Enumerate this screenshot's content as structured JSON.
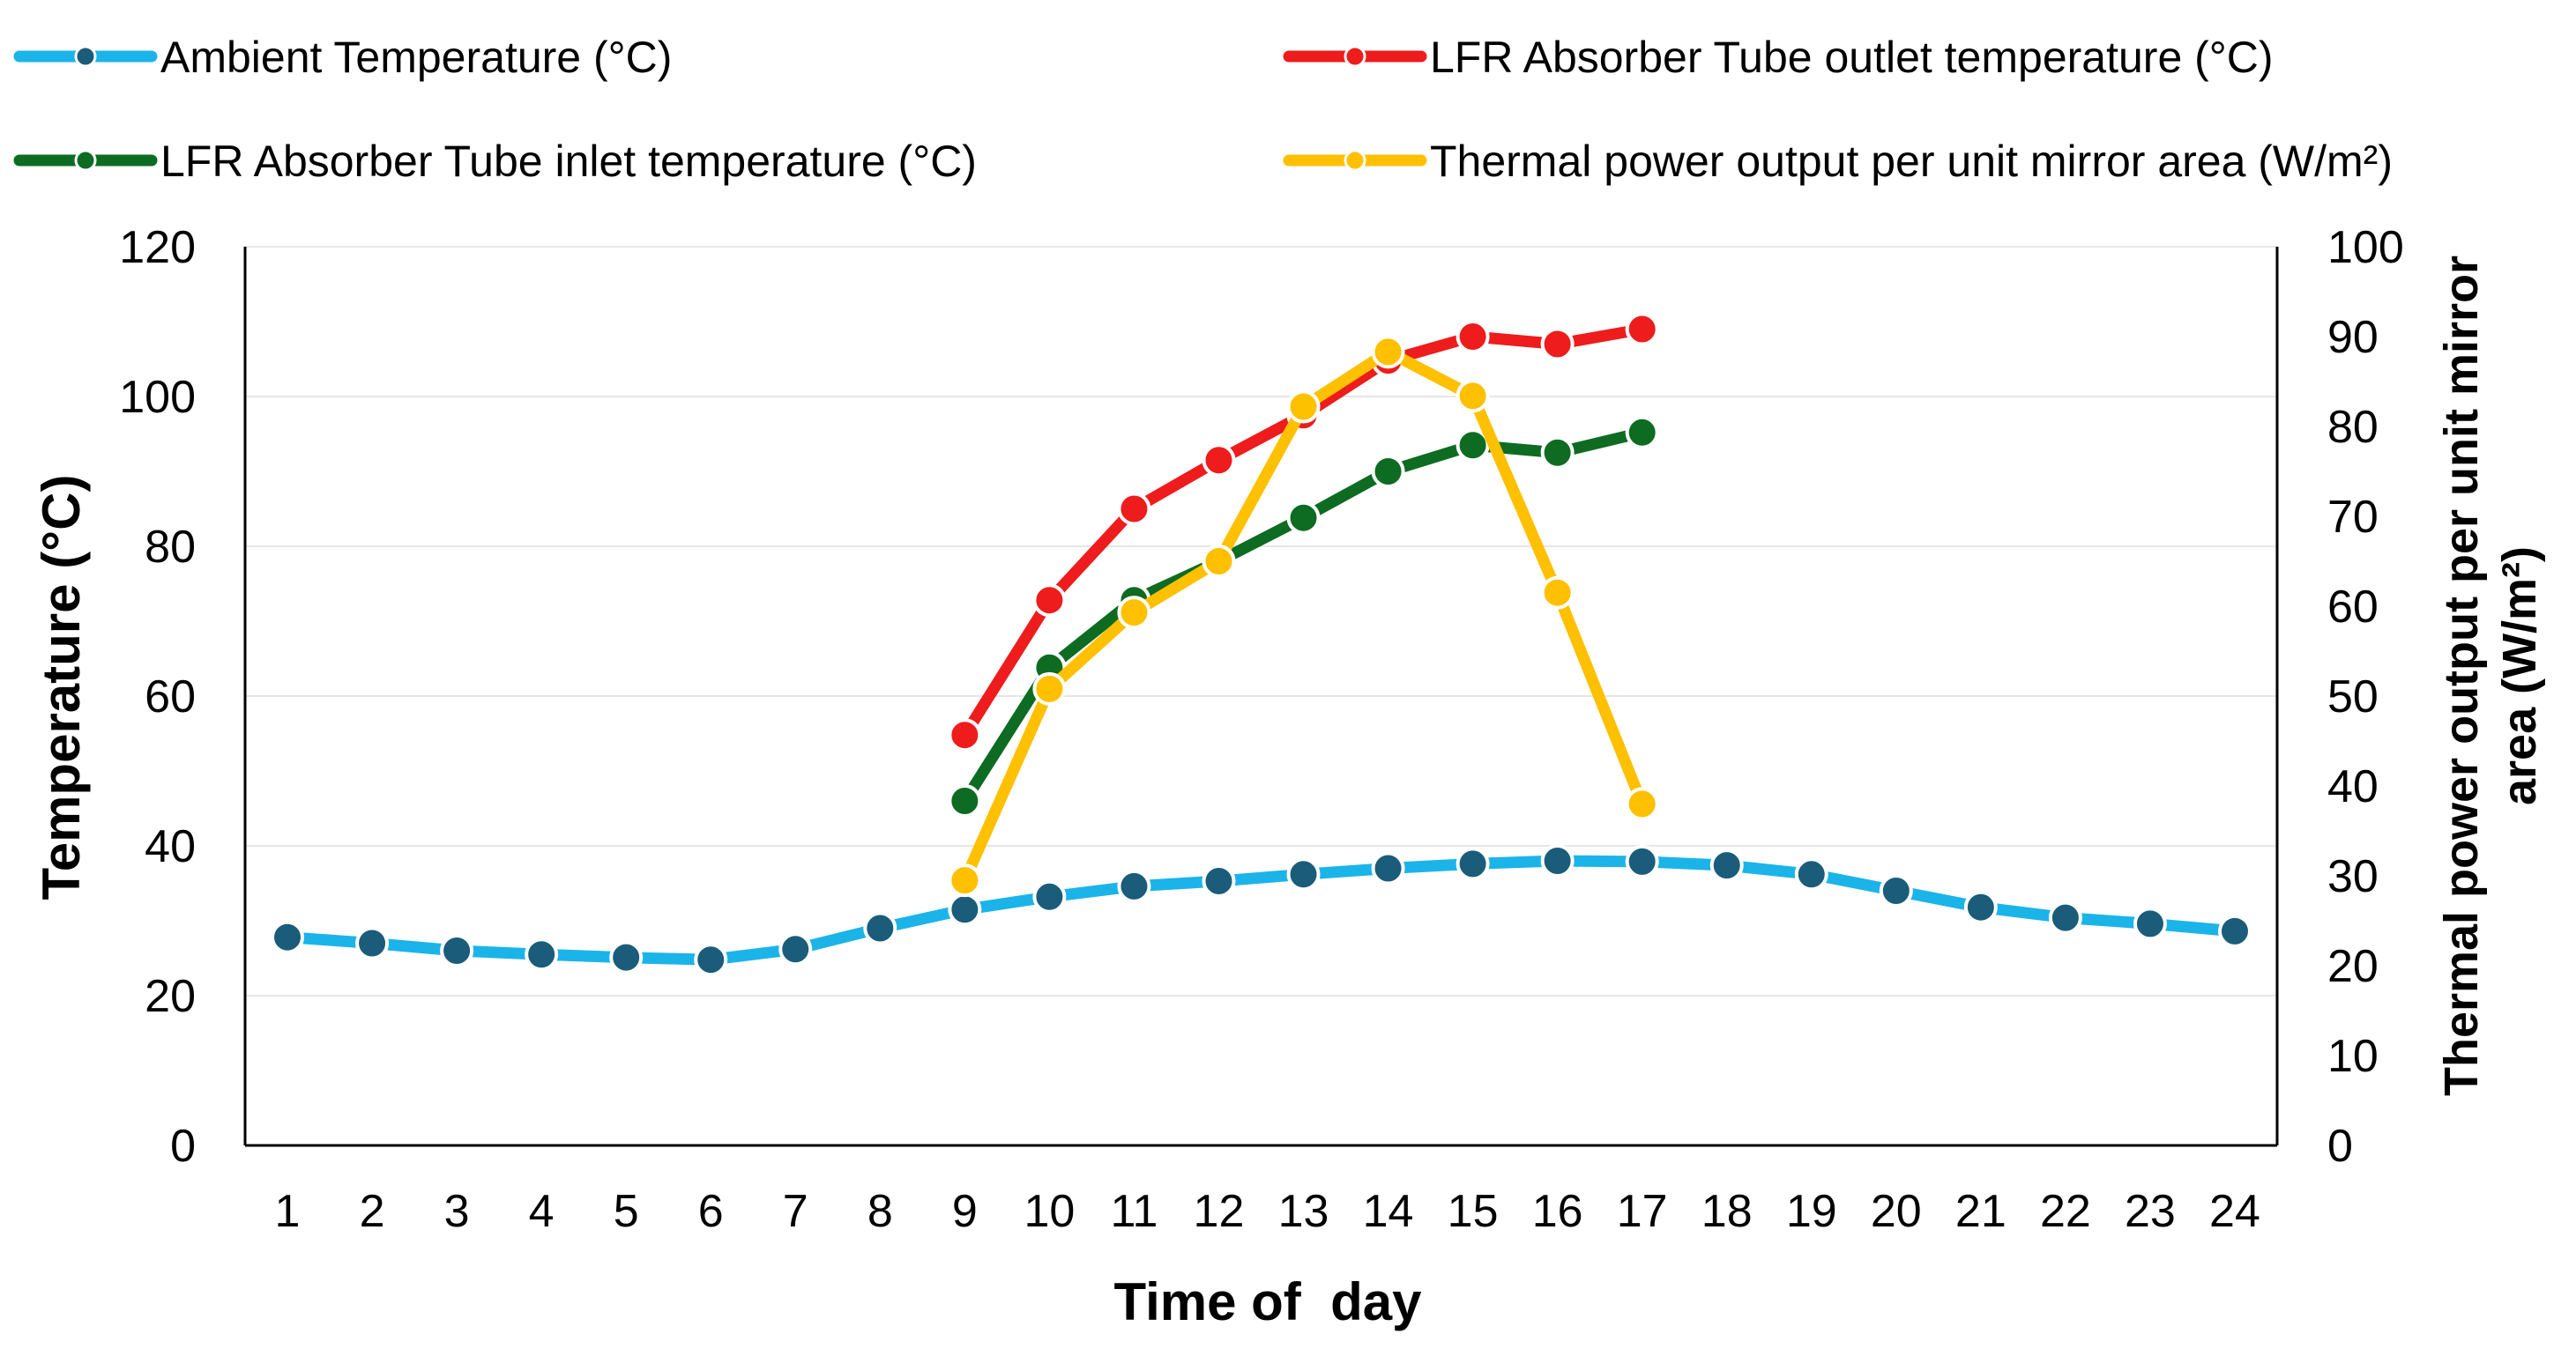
{
  "colors": {
    "ambient": "#1BB4E8",
    "ambient_marker": "#1A5C7A",
    "outlet": "#EE1C1C",
    "inlet": "#0E6B22",
    "thermal": "#FFC000",
    "axis": "#000000",
    "grid": "#E6E6E6",
    "marker_edge": "#FFFFFF"
  },
  "chart_data": {
    "type": "line",
    "xlabel": "Time of  day",
    "ylabel": "Temperature (°C)",
    "y2label_line1": "Thermal power output per unit mirror",
    "y2label_line2": "area (W/m²)",
    "ylim": [
      0,
      120
    ],
    "y2lim": [
      0,
      100
    ],
    "yticks": [
      "0",
      "20",
      "40",
      "60",
      "80",
      "100",
      "120"
    ],
    "y2ticks": [
      "0",
      "10",
      "20",
      "30",
      "40",
      "50",
      "60",
      "70",
      "80",
      "90",
      "100"
    ],
    "categories": [
      "1",
      "2",
      "3",
      "4",
      "5",
      "6",
      "7",
      "8",
      "9",
      "10",
      "11",
      "12",
      "13",
      "14",
      "15",
      "16",
      "17",
      "18",
      "19",
      "20",
      "21",
      "22",
      "23",
      "24"
    ],
    "grid": true,
    "legend_position": "top",
    "series": [
      {
        "name": "Ambient Temperature (°C)",
        "color_key": "ambient",
        "axis": "left",
        "x": [
          1,
          2,
          3,
          4,
          5,
          6,
          7,
          8,
          9,
          10,
          11,
          12,
          13,
          14,
          15,
          16,
          17,
          18,
          19,
          20,
          21,
          22,
          23,
          24
        ],
        "values": [
          27.8,
          27.0,
          26.0,
          25.5,
          25.1,
          24.8,
          26.2,
          29.0,
          31.5,
          33.2,
          34.6,
          35.3,
          36.2,
          37.0,
          37.6,
          38.0,
          37.9,
          37.4,
          36.2,
          34.0,
          31.8,
          30.4,
          29.6,
          28.6
        ]
      },
      {
        "name": "LFR Absorber Tube outlet temperature (°C)",
        "color_key": "outlet",
        "axis": "left",
        "x": [
          9,
          10,
          11,
          12,
          13,
          14,
          15,
          16,
          17
        ],
        "values": [
          54.8,
          72.8,
          85.0,
          91.5,
          97.5,
          104.8,
          108.0,
          107.0,
          109.0
        ]
      },
      {
        "name": "LFR Absorber Tube inlet temperature (°C)",
        "color_key": "inlet",
        "axis": "left",
        "x": [
          9,
          10,
          11,
          12,
          13,
          14,
          15,
          16,
          17
        ],
        "values": [
          46.0,
          63.8,
          72.8,
          78.0,
          83.8,
          90.0,
          93.5,
          92.5,
          95.2
        ]
      },
      {
        "name": "Thermal power output per unit mirror area (W/m²)",
        "color_key": "thermal",
        "axis": "right",
        "x": [
          9,
          10,
          11,
          12,
          13,
          14,
          15,
          16,
          17
        ],
        "values": [
          29.5,
          50.8,
          59.3,
          65.0,
          82.2,
          88.3,
          83.4,
          61.5,
          38.0
        ]
      }
    ]
  }
}
